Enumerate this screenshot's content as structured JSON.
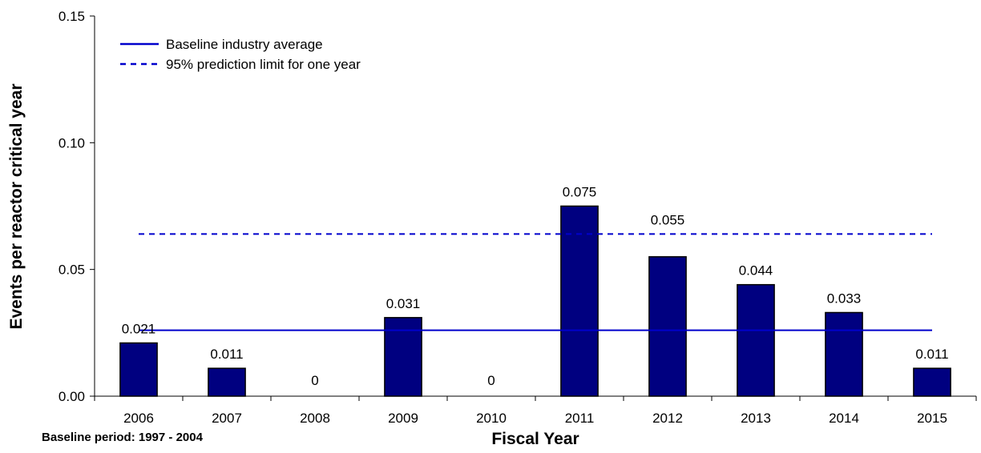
{
  "chart_data": {
    "type": "bar",
    "categories": [
      "2006",
      "2007",
      "2008",
      "2009",
      "2010",
      "2011",
      "2012",
      "2013",
      "2014",
      "2015"
    ],
    "values": [
      0.021,
      0.011,
      0,
      0.031,
      0,
      0.075,
      0.055,
      0.044,
      0.033,
      0.011
    ],
    "value_labels": [
      "0.021",
      "0.011",
      "0",
      "0.031",
      "0",
      "0.075",
      "0.055",
      "0.044",
      "0.033",
      "0.011"
    ],
    "bar_color": "#000080",
    "xlabel": "Fiscal Year",
    "ylabel": "Events per reactor critical year",
    "ylim": [
      0,
      0.15
    ],
    "yticks": [
      0,
      0.05,
      0.1,
      0.15
    ],
    "ytick_labels": [
      "0.00",
      "0.05",
      "0.10",
      "0.15"
    ],
    "grid": false,
    "legend_position": "top-left",
    "reference_lines": [
      {
        "name": "Baseline industry average",
        "value": 0.026,
        "style": "solid",
        "color": "#0000cc"
      },
      {
        "name": "95% prediction limit for one year",
        "value": 0.064,
        "style": "dashed",
        "color": "#0000cc"
      }
    ],
    "annotation": "Baseline period:  1997 - 2004"
  }
}
